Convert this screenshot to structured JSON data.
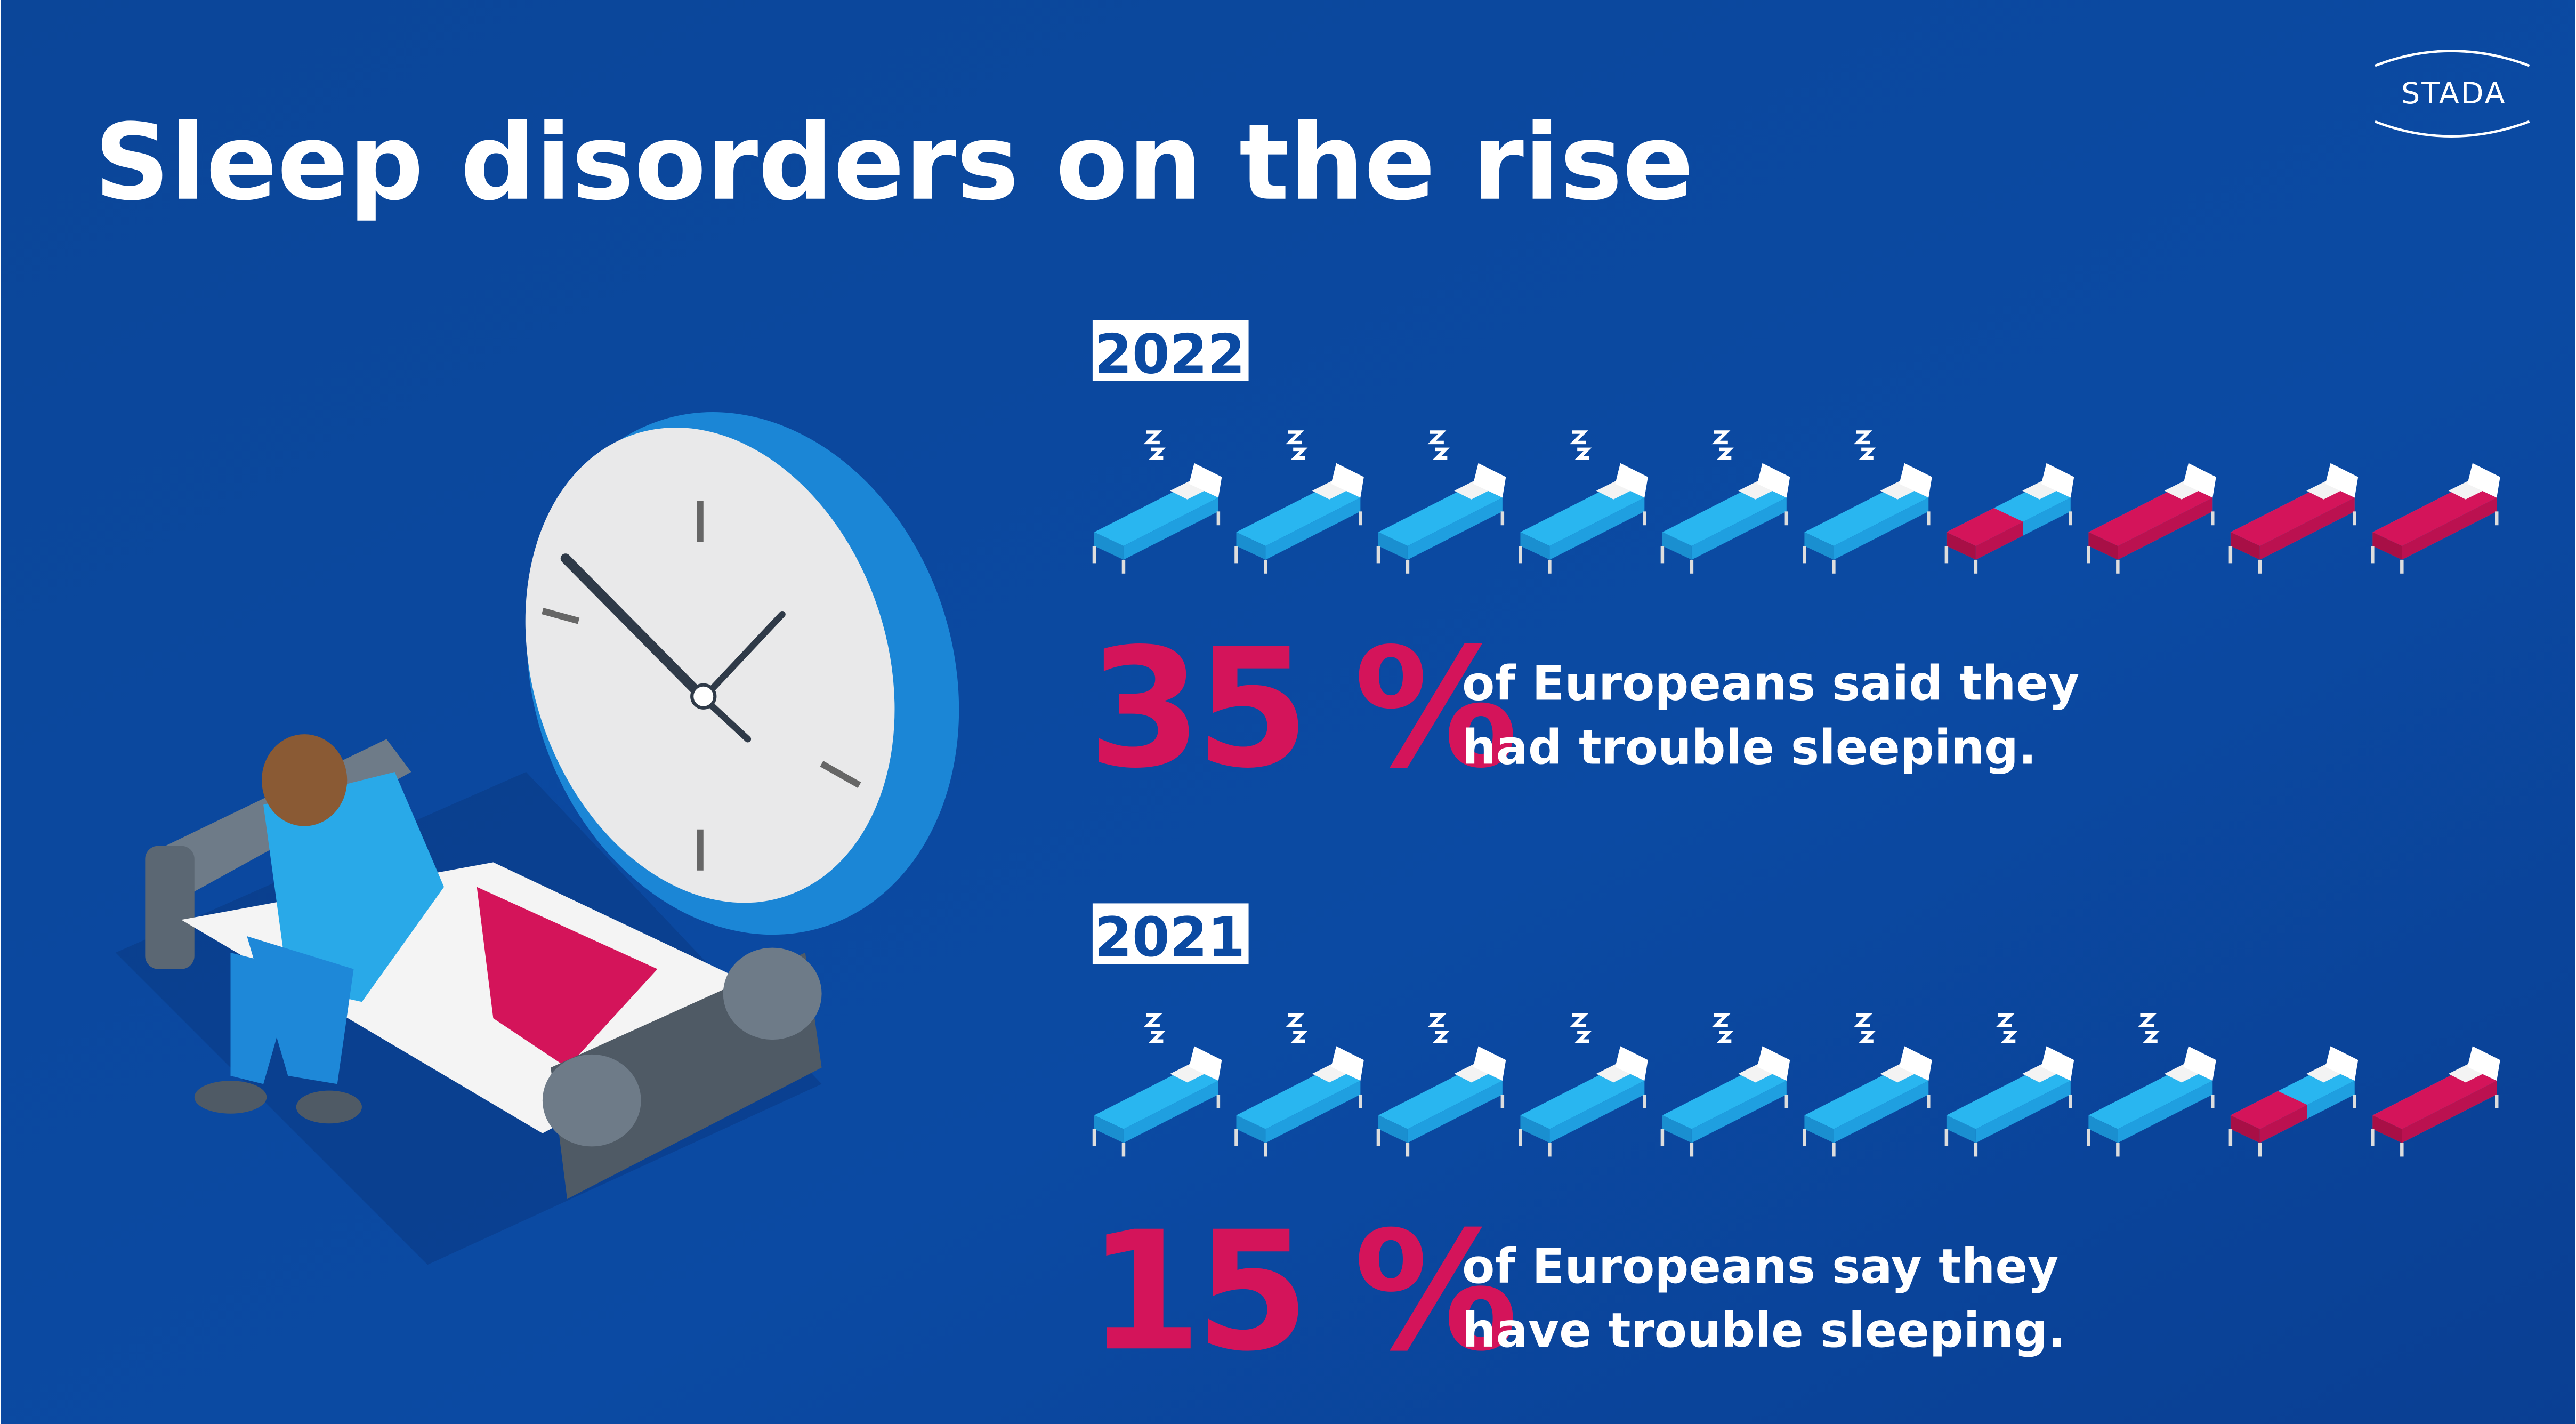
{
  "header": {
    "title": "Sleep disorders on the rise",
    "logo": "STADA"
  },
  "sections": [
    {
      "year": "2022",
      "value": 35,
      "value_label": "35 %",
      "text": [
        "of Europeans said they",
        "had trouble sleeping."
      ]
    },
    {
      "year": "2021",
      "value": 15,
      "value_label": "15 %",
      "text": [
        "of Europeans say they",
        "have trouble sleeping."
      ]
    }
  ]
}
